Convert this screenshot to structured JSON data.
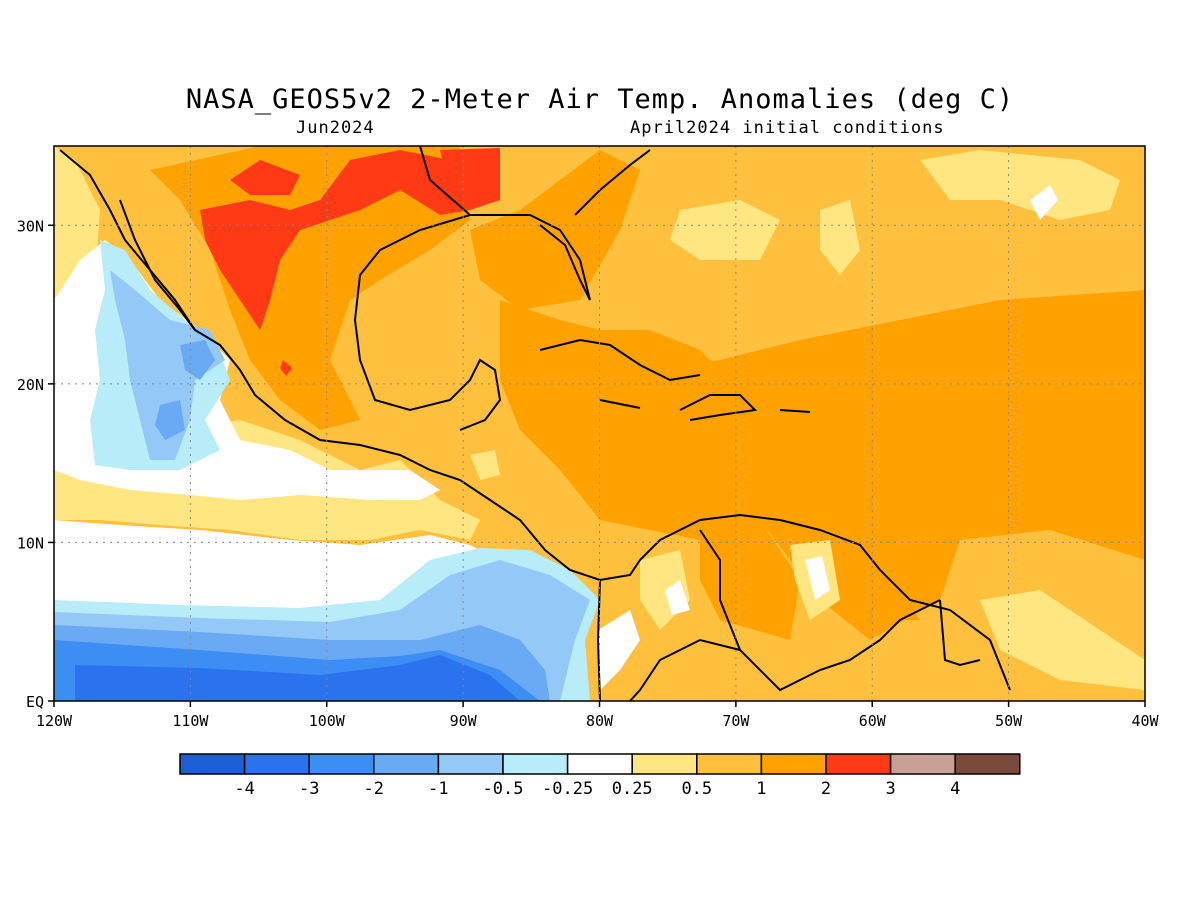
{
  "title": "NASA_GEOS5v2 2-Meter Air Temp. Anomalies (deg C)",
  "subtitle_left": "Jun2024",
  "subtitle_right": "April2024 initial conditions",
  "map": {
    "lon_range": [
      -120,
      -40
    ],
    "lat_range": [
      0,
      35
    ],
    "lon_ticks": [
      {
        "value": -120,
        "label": "120W"
      },
      {
        "value": -110,
        "label": "110W"
      },
      {
        "value": -100,
        "label": "100W"
      },
      {
        "value": -90,
        "label": "90W"
      },
      {
        "value": -80,
        "label": "80W"
      },
      {
        "value": -70,
        "label": "70W"
      },
      {
        "value": -60,
        "label": "60W"
      },
      {
        "value": -50,
        "label": "50W"
      },
      {
        "value": -40,
        "label": "40W"
      }
    ],
    "lat_ticks": [
      {
        "value": 0,
        "label": "EQ"
      },
      {
        "value": 10,
        "label": "10N"
      },
      {
        "value": 20,
        "label": "20N"
      },
      {
        "value": 30,
        "label": "30N"
      }
    ],
    "grid": true
  },
  "legend": {
    "colors": [
      "#1c5fd6",
      "#2a72ee",
      "#3c8ef5",
      "#6aaaf5",
      "#94c8f7",
      "#b8ecf8",
      "#ffffff",
      "#ffe680",
      "#ffc03d",
      "#ffa200",
      "#ff3a14",
      "#c9a095",
      "#7a4a3c"
    ],
    "labels": [
      "-4",
      "-3",
      "-2",
      "-1",
      "-0.5",
      "-0.25",
      "0.25",
      "0.5",
      "1",
      "2",
      "3",
      "4"
    ]
  }
}
